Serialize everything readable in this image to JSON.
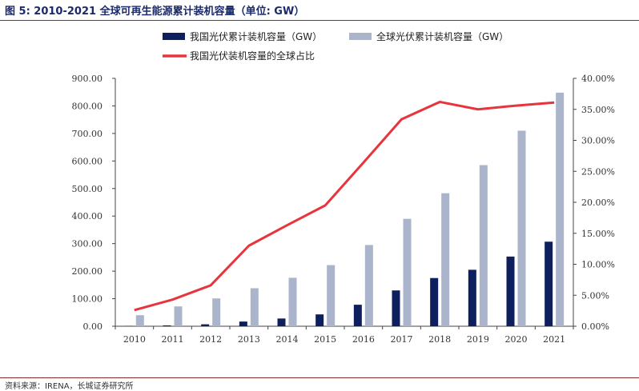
{
  "header": {
    "title": "图 5:  2010-2021 全球可再生能源累计装机容量（单位:  GW）"
  },
  "footer": {
    "source": "资料来源：IRENA，长城证券研究所"
  },
  "chart_data": {
    "type": "bar",
    "title": "2010-2021 全球可再生能源累计装机容量（单位:  GW）",
    "categories": [
      "2010",
      "2011",
      "2012",
      "2013",
      "2014",
      "2015",
      "2016",
      "2017",
      "2018",
      "2019",
      "2020",
      "2021"
    ],
    "series": [
      {
        "name": "我国光伏累计装机容量（GW）",
        "kind": "bar",
        "axis": "left",
        "color": "#0d1f5c",
        "values": [
          1,
          3,
          7,
          17,
          28,
          43,
          78,
          130,
          175,
          205,
          253,
          307
        ]
      },
      {
        "name": "全球光伏累计装机容量（GW）",
        "kind": "bar",
        "axis": "left",
        "color": "#aab5cc",
        "values": [
          40,
          72,
          101,
          138,
          176,
          222,
          295,
          390,
          483,
          585,
          710,
          848
        ]
      },
      {
        "name": "我国光伏装机容量的全球占比",
        "kind": "line",
        "axis": "right",
        "color": "#e8343c",
        "values": [
          2.6,
          4.3,
          6.6,
          13.0,
          16.3,
          19.5,
          26.4,
          33.4,
          36.2,
          35.0,
          35.6,
          36.1
        ]
      }
    ],
    "y_left": {
      "min": 0,
      "max": 900,
      "step": 100,
      "tick_labels": [
        "0.00",
        "100.00",
        "200.00",
        "300.00",
        "400.00",
        "500.00",
        "600.00",
        "700.00",
        "800.00",
        "900.00"
      ]
    },
    "y_right": {
      "min": 0,
      "max": 40,
      "step": 5,
      "tick_labels": [
        "0.00%",
        "5.00%",
        "10.00%",
        "15.00%",
        "20.00%",
        "25.00%",
        "30.00%",
        "35.00%",
        "40.00%"
      ]
    },
    "legend_position": "top",
    "grid": false
  }
}
